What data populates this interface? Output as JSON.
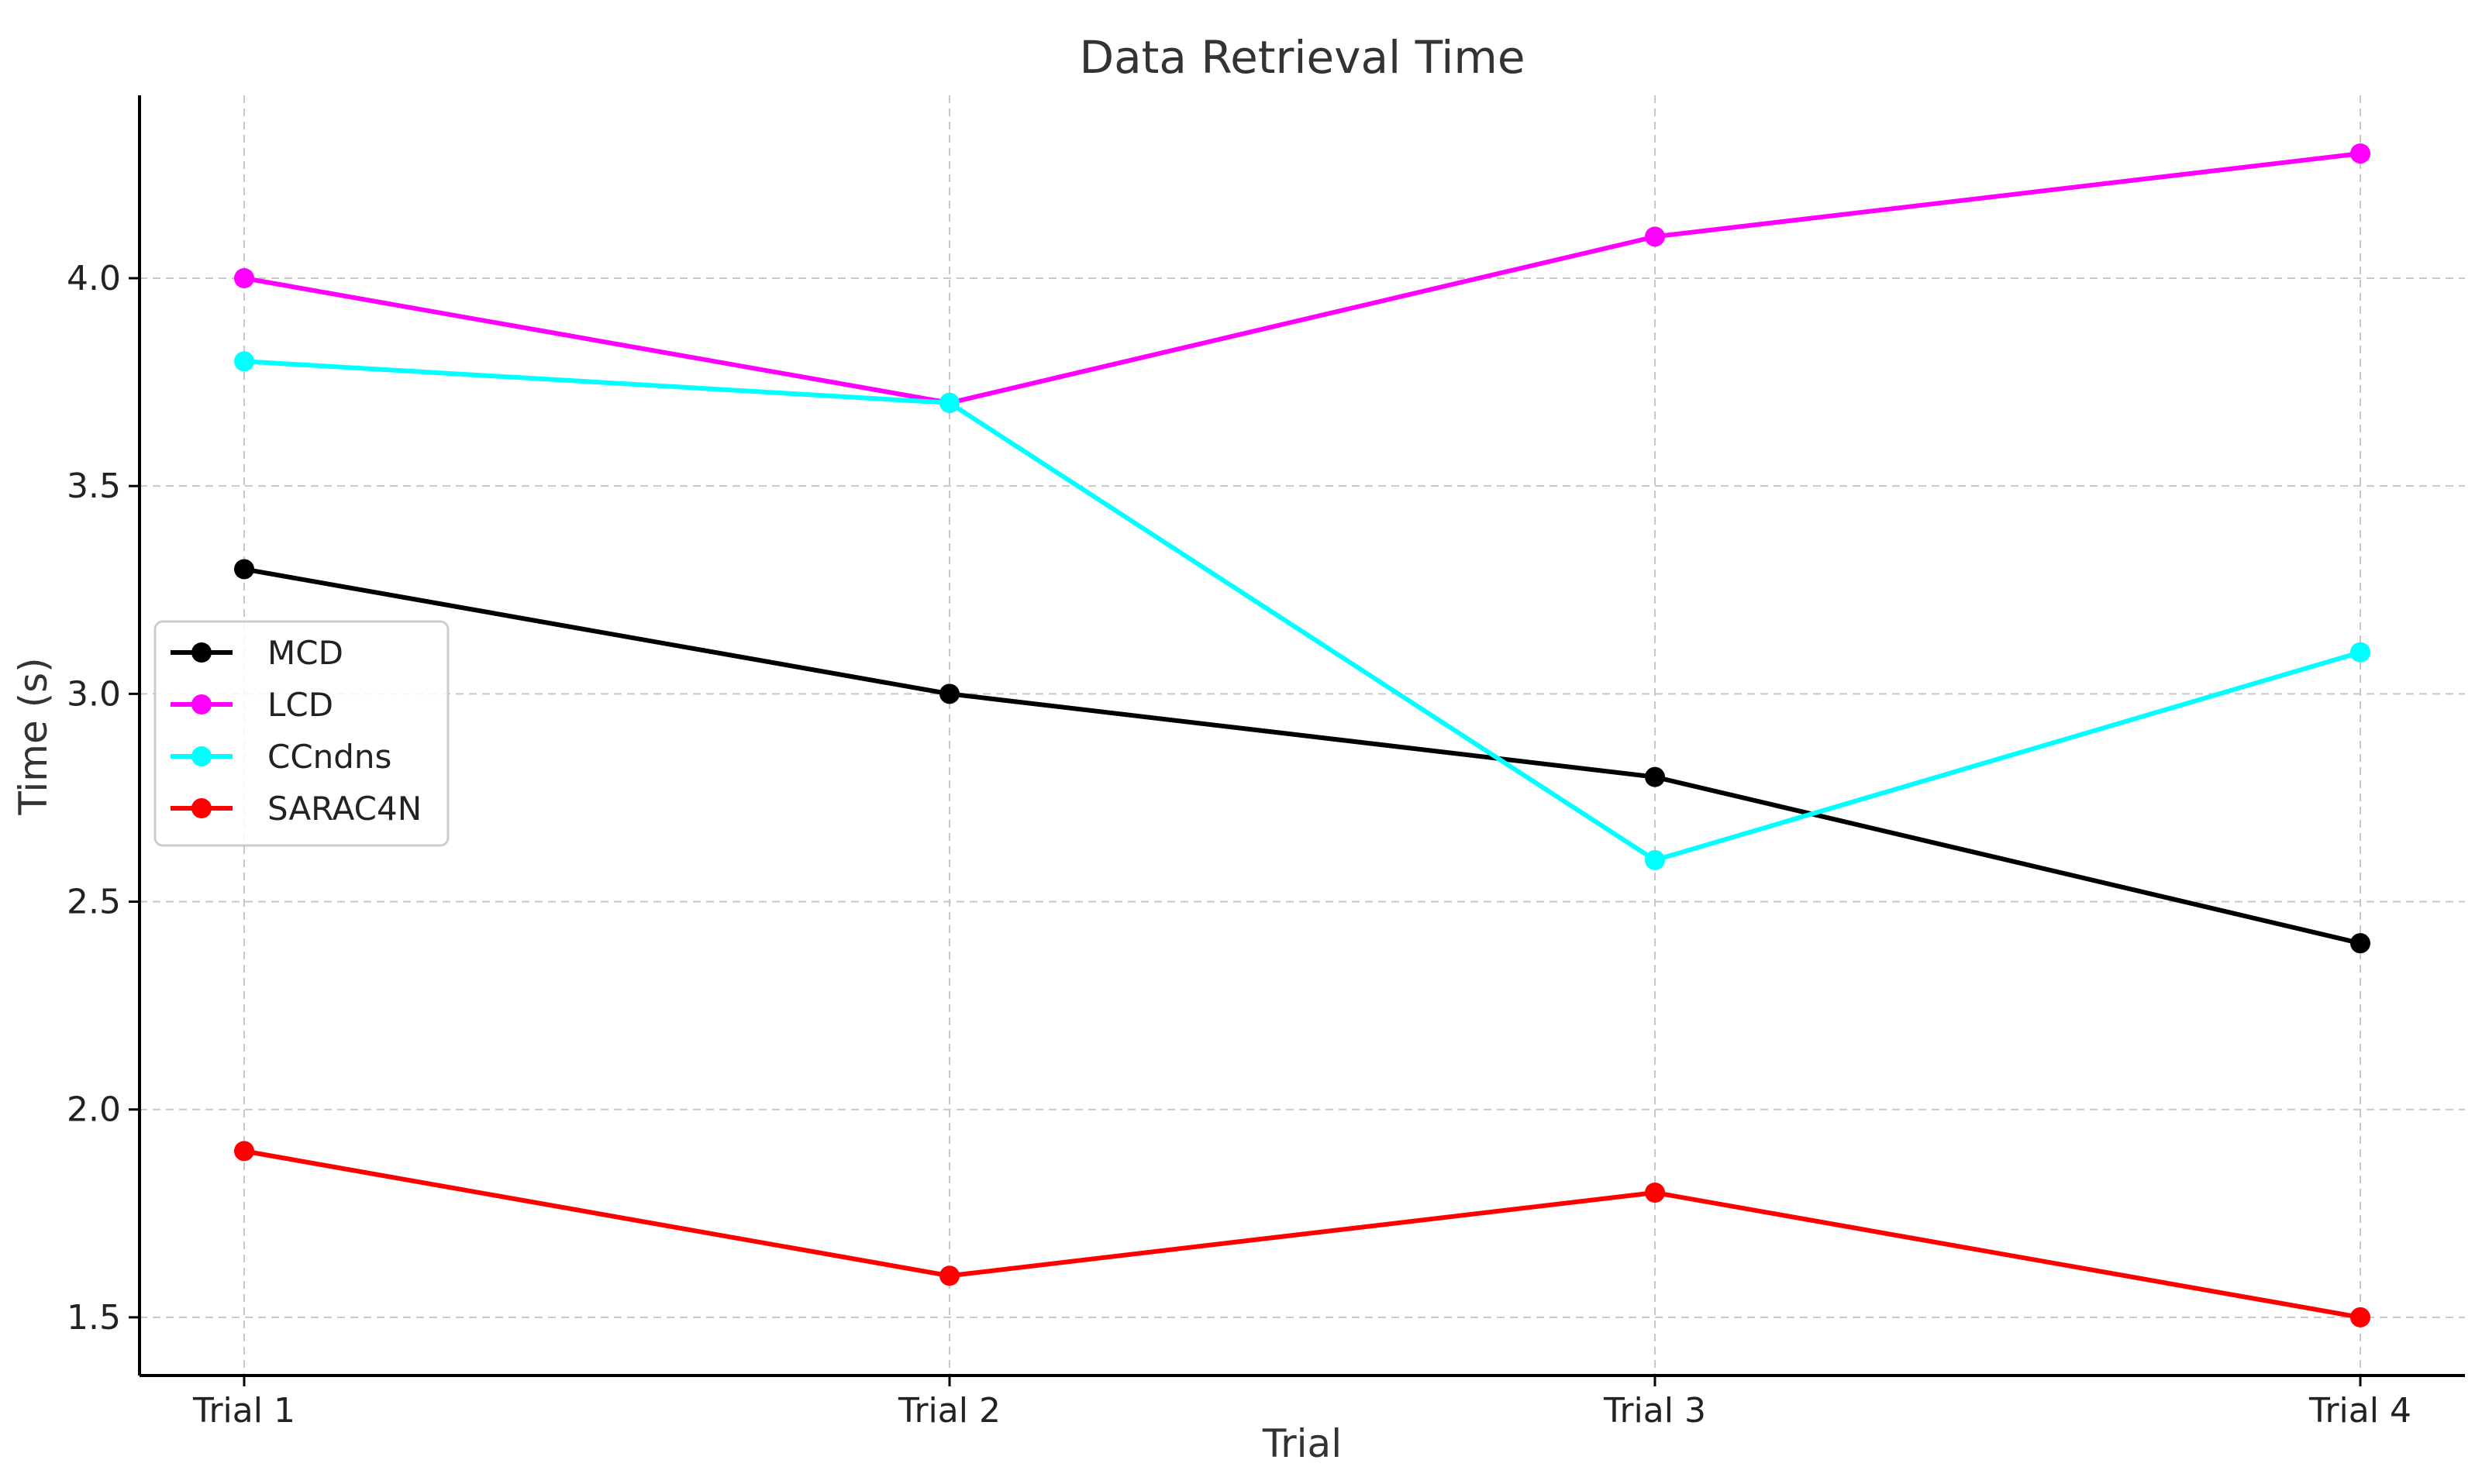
{
  "chart_data": {
    "type": "line",
    "title": "Data Retrieval Time",
    "xlabel": "Trial",
    "ylabel": "Time (s)",
    "categories": [
      "Trial 1",
      "Trial 2",
      "Trial 3",
      "Trial 4"
    ],
    "ylim": [
      1.36,
      4.44
    ],
    "yticks": [
      1.5,
      2.0,
      2.5,
      3.0,
      3.5,
      4.0
    ],
    "ytick_labels": [
      "1.5",
      "2.0",
      "2.5",
      "3.0",
      "3.5",
      "4.0"
    ],
    "grid": true,
    "legend_position": "center-left",
    "series": [
      {
        "name": "MCD",
        "color": "#000000",
        "marker": "circle",
        "values": [
          3.3,
          3.0,
          2.8,
          2.4
        ]
      },
      {
        "name": "LCD",
        "color": "#ff00ff",
        "marker": "circle",
        "values": [
          4.0,
          3.7,
          4.1,
          4.3
        ]
      },
      {
        "name": "CCndns",
        "color": "#00ffff",
        "marker": "circle",
        "values": [
          3.8,
          3.7,
          2.6,
          3.1
        ]
      },
      {
        "name": "SARAC4N",
        "color": "#ff0000",
        "marker": "circle",
        "values": [
          1.9,
          1.6,
          1.8,
          1.5
        ]
      }
    ]
  }
}
